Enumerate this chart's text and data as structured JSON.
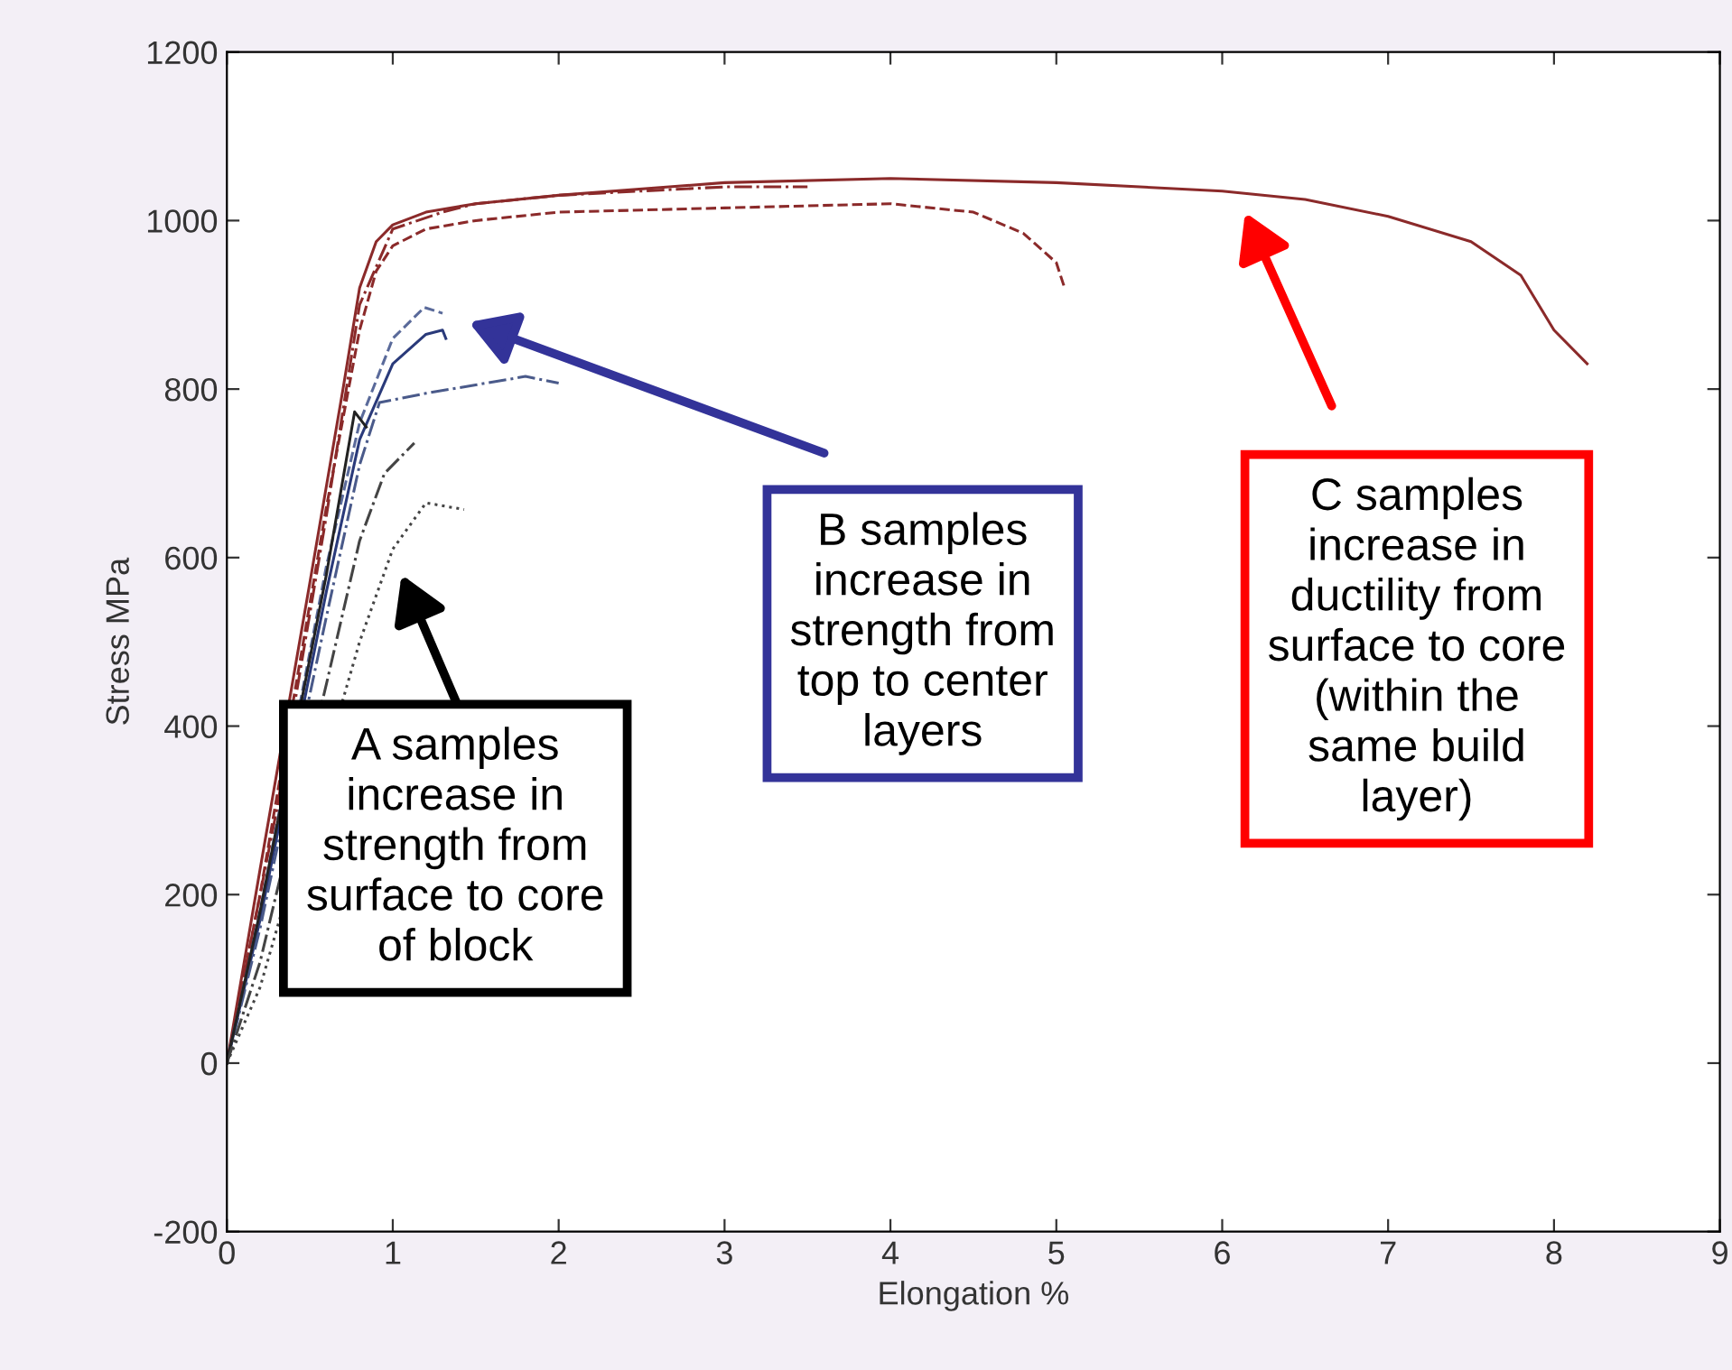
{
  "chart_data": {
    "type": "line",
    "xlabel": "Elongation %",
    "ylabel": "Stress MPa",
    "xlim": [
      0,
      9
    ],
    "ylim": [
      -200,
      1200
    ],
    "xticks": [
      0,
      1,
      2,
      3,
      4,
      5,
      6,
      7,
      8,
      9
    ],
    "yticks": [
      -200,
      0,
      200,
      400,
      600,
      800,
      1000,
      1200
    ],
    "grid": false,
    "legend": false,
    "marker": "none",
    "series": [
      {
        "color": "#8b2a2a",
        "line_style": "solid",
        "x": [
          0,
          0.2,
          0.5,
          0.7,
          0.8,
          0.9,
          1.0,
          1.2,
          1.5,
          2,
          3,
          4,
          5,
          6,
          6.5,
          7,
          7.5,
          7.8,
          8,
          8.2
        ],
        "values": [
          0,
          230,
          570,
          800,
          920,
          975,
          995,
          1010,
          1020,
          1030,
          1045,
          1050,
          1045,
          1035,
          1025,
          1005,
          975,
          935,
          870,
          830
        ]
      },
      {
        "color": "#8b2a2a",
        "line_style": "dashed",
        "x": [
          0,
          0.2,
          0.6,
          0.8,
          0.9,
          1.0,
          1.2,
          1.5,
          2,
          3,
          4,
          4.5,
          4.8,
          5.0,
          5.05
        ],
        "values": [
          0,
          200,
          660,
          870,
          940,
          970,
          990,
          1000,
          1010,
          1015,
          1020,
          1010,
          985,
          950,
          920
        ]
      },
      {
        "color": "#8b2a2a",
        "line_style": "dashdot",
        "x": [
          0,
          0.3,
          0.6,
          0.8,
          1.0,
          1.3,
          1.5,
          2,
          2.5,
          3,
          3.5
        ],
        "values": [
          0,
          300,
          650,
          900,
          990,
          1010,
          1020,
          1030,
          1035,
          1040,
          1040
        ]
      },
      {
        "color": "#5a6a9a",
        "line_style": "dashed",
        "x": [
          0,
          0.2,
          0.6,
          0.8,
          1.0,
          1.19,
          1.3
        ],
        "values": [
          0,
          180,
          590,
          760,
          860,
          897,
          890
        ]
      },
      {
        "color": "#2a3a7a",
        "line_style": "solid",
        "x": [
          0,
          0.2,
          0.6,
          0.8,
          1.0,
          1.2,
          1.3,
          1.32
        ],
        "values": [
          0,
          170,
          560,
          740,
          830,
          865,
          870,
          860
        ]
      },
      {
        "color": "#4a5a8a",
        "line_style": "dashdot",
        "x": [
          0,
          0.2,
          0.6,
          0.8,
          0.92,
          1.2,
          1.5,
          1.8,
          2.0
        ],
        "values": [
          0,
          160,
          530,
          710,
          784,
          795,
          805,
          815,
          807
        ]
      },
      {
        "color": "#222222",
        "line_style": "solid",
        "x": [
          0,
          0.2,
          0.6,
          0.77,
          0.84
        ],
        "values": [
          0,
          180,
          580,
          773,
          755
        ]
      },
      {
        "color": "#444444",
        "line_style": "dashdot",
        "x": [
          0,
          0.2,
          0.6,
          0.8,
          0.95,
          1.1,
          1.13
        ],
        "values": [
          0,
          120,
          450,
          620,
          700,
          730,
          736
        ]
      },
      {
        "color": "#444444",
        "line_style": "dotted",
        "x": [
          0,
          0.2,
          0.8,
          1.0,
          1.2,
          1.43
        ],
        "values": [
          0,
          90,
          500,
          610,
          665,
          657
        ]
      }
    ],
    "annotations": [
      "A samples\nincrease in\nstrength from\nsurface to core\nof block",
      "B samples\nincrease in\nstrength from\ntop to center\nlayers",
      "C samples\nincrease in\nductility from\nsurface to core\n(within the\nsame build\nlayer)"
    ]
  }
}
